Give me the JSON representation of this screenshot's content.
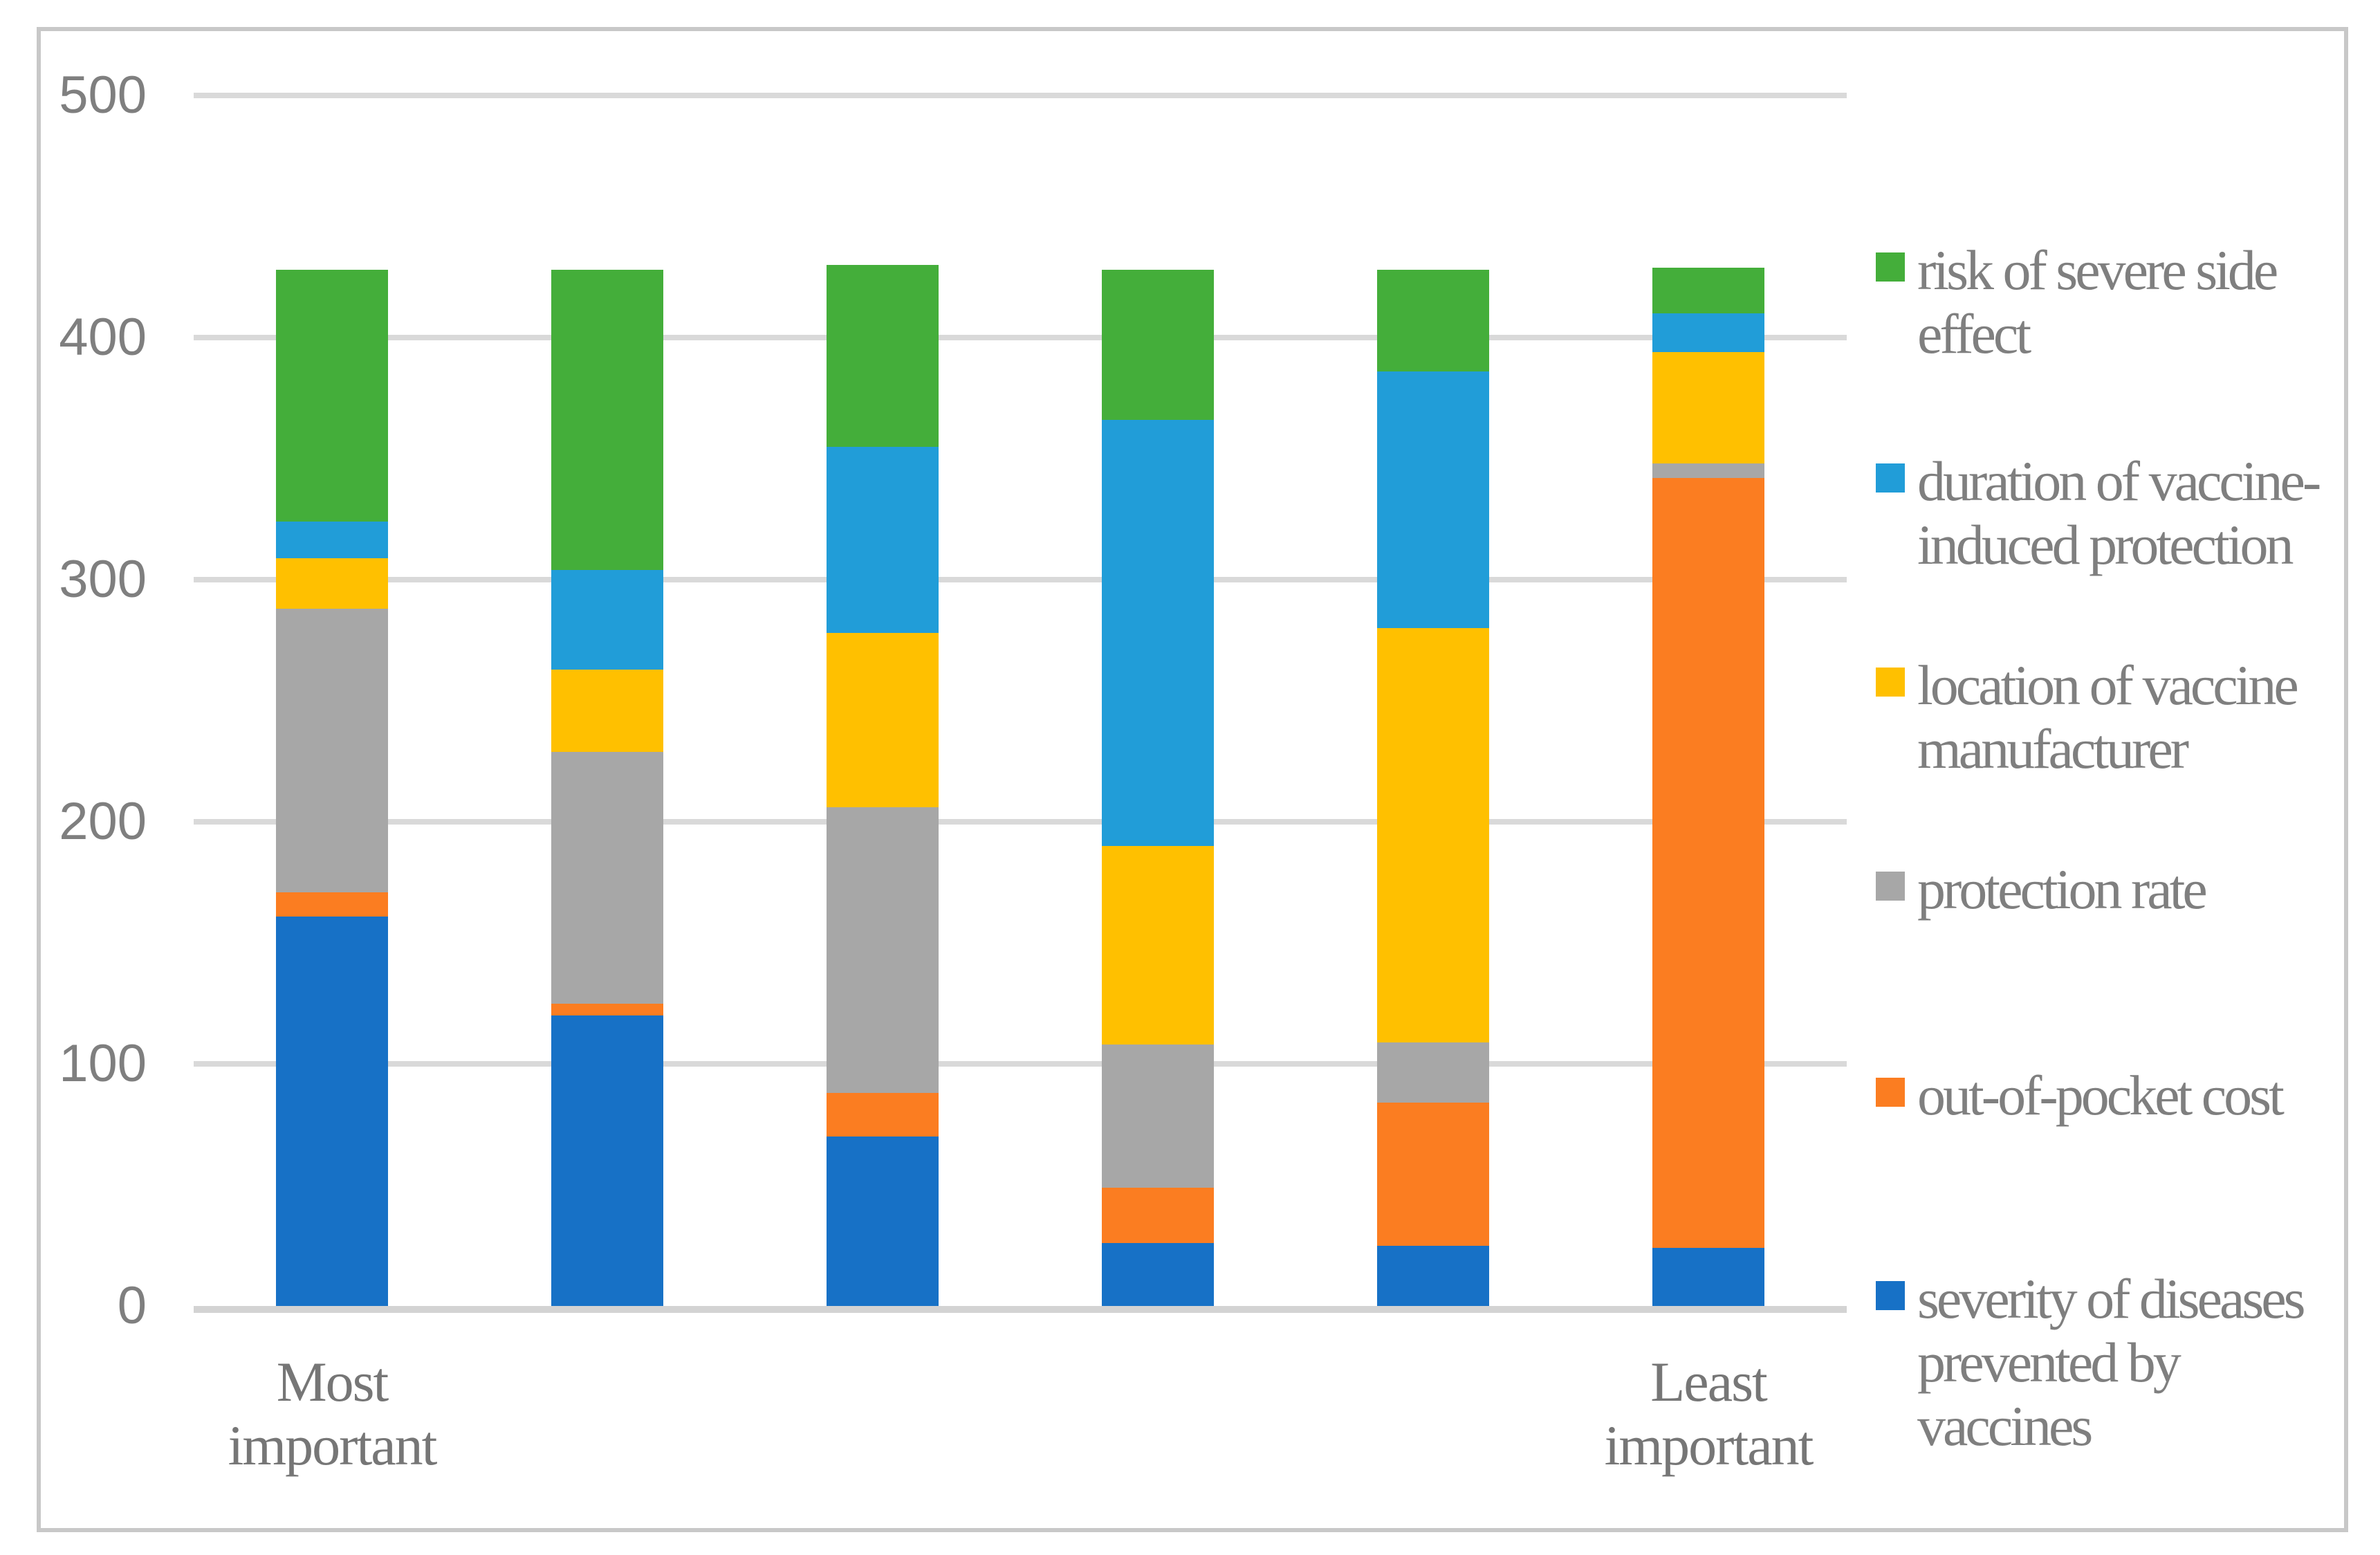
{
  "chart_data": {
    "type": "bar",
    "stacked": true,
    "title": "",
    "xlabel": "",
    "ylabel": "",
    "ylim": [
      0,
      500
    ],
    "yticks": [
      0,
      100,
      200,
      300,
      400,
      500
    ],
    "grid": true,
    "legend_position": "right",
    "categories": [
      "Most important",
      "",
      "",
      "",
      "",
      "Least important"
    ],
    "category_axis_labels": [
      {
        "lines": [
          "Most",
          "important"
        ],
        "bar_index": 0
      },
      {
        "lines": [
          "Least",
          "important"
        ],
        "bar_index": 5
      }
    ],
    "series": [
      {
        "name": "severity  of diseases prevented by vaccines",
        "color": "#1771C6",
        "values": [
          161,
          120,
          70,
          26,
          25,
          24
        ]
      },
      {
        "name": "out-of-pocket cost",
        "color": "#FB7D21",
        "values": [
          10,
          5,
          18,
          23,
          59,
          318
        ]
      },
      {
        "name": "protection rate",
        "color": "#A7A7A7",
        "values": [
          117,
          104,
          118,
          59,
          25,
          6
        ]
      },
      {
        "name": "location of vaccine manufacturer",
        "color": "#FFC000",
        "values": [
          21,
          34,
          72,
          82,
          171,
          46
        ]
      },
      {
        "name": "duration of vaccine-induced protection",
        "color": "#219DD8",
        "values": [
          15,
          41,
          77,
          176,
          106,
          16
        ]
      },
      {
        "name": "risk of severe side effect",
        "color": "#44AE3A",
        "values": [
          104,
          124,
          75,
          62,
          42,
          19
        ]
      }
    ],
    "bar_totals": [
      428,
      428,
      430,
      428,
      428,
      429
    ]
  },
  "legend": {
    "items": [
      {
        "label": "risk of severe side effect",
        "lines": [
          "risk of severe side",
          "effect"
        ],
        "color": "#44AE3A"
      },
      {
        "label": "duration of vaccine-induced protection",
        "lines": [
          "duration of vaccine-",
          "induced protection"
        ],
        "color": "#219DD8"
      },
      {
        "label": "location of vaccine manufacturer",
        "lines": [
          "location of vaccine",
          "manufacturer"
        ],
        "color": "#FFC000"
      },
      {
        "label": "protection rate",
        "lines": [
          "protection rate"
        ],
        "color": "#A7A7A7"
      },
      {
        "label": "out-of-pocket cost",
        "lines": [
          "out-of-pocket cost"
        ],
        "color": "#FB7D21"
      },
      {
        "label": "severity  of diseases prevented by vaccines",
        "lines": [
          "severity  of diseases",
          "prevented by",
          "vaccines"
        ],
        "color": "#1771C6"
      }
    ]
  },
  "colors": {
    "text": "#7F7F7F",
    "gridline": "#D9D9D9",
    "border": "#C8C8C8",
    "background": "#FFFFFF"
  }
}
